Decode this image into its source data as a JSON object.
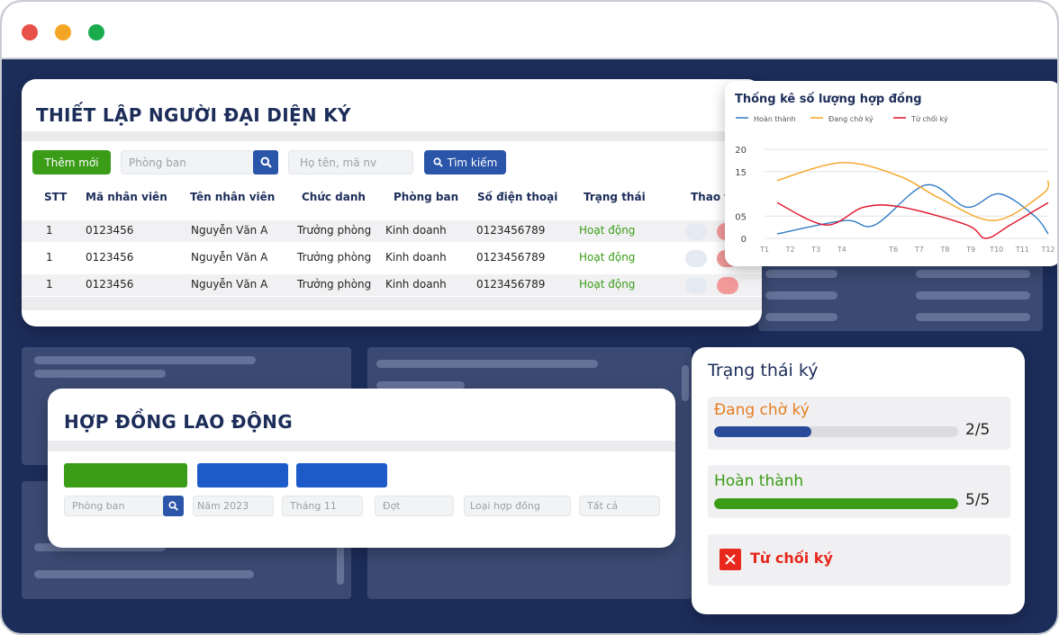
{
  "card1": {
    "title": "THIẾT LẬP NGƯỜI ĐẠI DIỆN KÝ",
    "add_button": "Thêm mới",
    "department_placeholder": "Phòng ban",
    "name_placeholder": "Họ tên, mã nv",
    "search_button": "Tìm kiếm",
    "columns": [
      "STT",
      "Mã nhân viên",
      "Tên nhân viên",
      "Chức danh",
      "Phòng ban",
      "Số điện thoại",
      "Trạng thái",
      "Thao t"
    ],
    "rows": [
      {
        "stt": "1",
        "code": "0123456",
        "name": "Nguyễn Văn A",
        "title": "Trưởng phòng",
        "dept": "Kinh doanh",
        "phone": "0123456789",
        "status": "Hoạt động"
      },
      {
        "stt": "1",
        "code": "0123456",
        "name": "Nguyễn Văn A",
        "title": "Trưởng phòng",
        "dept": "Kinh doanh",
        "phone": "0123456789",
        "status": "Hoạt động"
      },
      {
        "stt": "1",
        "code": "0123456",
        "name": "Nguyễn Văn A",
        "title": "Trưởng phòng",
        "dept": "Kinh doanh",
        "phone": "0123456789",
        "status": "Hoạt động"
      }
    ]
  },
  "chart": {
    "title": "Thống kê số lượng hợp đồng",
    "legend": [
      {
        "name": "Hoàn thành",
        "color": "#2f7bc4"
      },
      {
        "name": "Đang chờ ký",
        "color": "#f5a524"
      },
      {
        "name": "Từ chối ký",
        "color": "#e0142a"
      }
    ]
  },
  "chart_data": {
    "type": "line",
    "title": "Thống kê số lượng hợp đồng",
    "x_labels": [
      "T1",
      "T2",
      "T3",
      "T4",
      "T6",
      "T7",
      "T8",
      "T9",
      "T10",
      "T11",
      "T12"
    ],
    "y_ticks": [
      "20",
      "15",
      "05",
      "0"
    ],
    "ylim": [
      0,
      20
    ],
    "legend_position": "top",
    "grid": true,
    "series": [
      {
        "name": "Hoàn thành",
        "color": "#2f7bc4",
        "x": [
          0,
          2.5,
          3.6,
          5.5,
          7.0,
          8.2,
          9.5,
          10.0
        ],
        "y": [
          1,
          4,
          3,
          12,
          7,
          10,
          5,
          1
        ]
      },
      {
        "name": "Đang chờ ký",
        "color": "#f5a524",
        "x": [
          0,
          2.4,
          4.5,
          6.0,
          8.0,
          9.8,
          10.0
        ],
        "y": [
          13,
          17,
          14,
          9,
          4,
          10,
          13
        ]
      },
      {
        "name": "Từ chối ký",
        "color": "#e0142a",
        "x": [
          0,
          1.8,
          3.2,
          4.6,
          7.0,
          7.7,
          8.6,
          10.0
        ],
        "y": [
          8,
          3,
          7,
          7,
          3,
          0,
          3,
          8
        ]
      }
    ]
  },
  "card2": {
    "title": "HỢP ĐỒNG LAO ĐỘNG",
    "filters": [
      "Phòng ban",
      "Năm 2023",
      "Tháng 11",
      "Đợt",
      "Loại hợp đồng",
      "Tất cả"
    ]
  },
  "card3": {
    "title": "Trạng thái ký",
    "statuses": [
      {
        "label": "Đang chờ ký",
        "count": "2/5",
        "progress": 0.4,
        "color": "#e67e22",
        "bar_color": "#2a4a9a"
      },
      {
        "label": "Hoàn thành",
        "count": "5/5",
        "progress": 1.0,
        "color": "#3a9c17",
        "bar_color": "#3a9c17"
      }
    ],
    "rejected_label": "Từ chối ký",
    "rejected_color": "#e8281c"
  },
  "icons": [
    "search-icon",
    "close-icon"
  ]
}
